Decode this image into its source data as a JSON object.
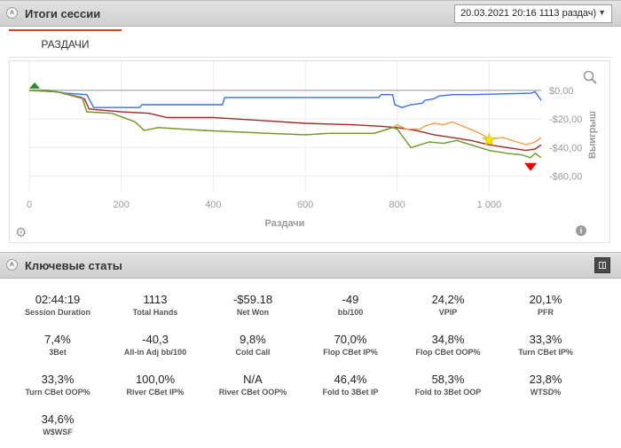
{
  "session_summary": {
    "title": "Итоги сессии",
    "session_selector": "20.03.2021 20:16 1113 раздач)",
    "tab_label": "РАЗДАЧИ"
  },
  "chart_data": {
    "type": "line",
    "xlabel": "Раздачи",
    "ylabel": "Выигрыш",
    "x_ticks": [
      "0",
      "200",
      "400",
      "600",
      "800",
      "1 000"
    ],
    "y_ticks": [
      "$0,00",
      "-$20,00",
      "-$40,00",
      "-$60,00"
    ],
    "xlim": [
      0,
      1113
    ],
    "ylim": [
      -67,
      3
    ],
    "series": [
      {
        "color": "#3b6fe0",
        "points": [
          [
            0,
            0
          ],
          [
            40,
            0
          ],
          [
            80,
            -2
          ],
          [
            125,
            -3
          ],
          [
            140,
            -12
          ],
          [
            240,
            -12
          ],
          [
            245,
            -10
          ],
          [
            420,
            -10
          ],
          [
            425,
            -5
          ],
          [
            760,
            -5
          ],
          [
            765,
            -3
          ],
          [
            790,
            -3
          ],
          [
            795,
            -10
          ],
          [
            810,
            -12
          ],
          [
            830,
            -10
          ],
          [
            855,
            -9
          ],
          [
            860,
            -7
          ],
          [
            880,
            -6
          ],
          [
            890,
            -4
          ],
          [
            920,
            -3
          ],
          [
            960,
            -3
          ],
          [
            1090,
            -2
          ],
          [
            1100,
            -1
          ],
          [
            1113,
            -7
          ]
        ]
      },
      {
        "color": "#9e2a2a",
        "points": [
          [
            0,
            0
          ],
          [
            60,
            -1
          ],
          [
            120,
            -6
          ],
          [
            130,
            -13
          ],
          [
            200,
            -15
          ],
          [
            260,
            -16
          ],
          [
            300,
            -19
          ],
          [
            400,
            -19
          ],
          [
            500,
            -21
          ],
          [
            600,
            -23
          ],
          [
            700,
            -24
          ],
          [
            760,
            -25
          ],
          [
            800,
            -26
          ],
          [
            840,
            -28
          ],
          [
            880,
            -31
          ],
          [
            920,
            -33
          ],
          [
            960,
            -35
          ],
          [
            1000,
            -38
          ],
          [
            1040,
            -40
          ],
          [
            1080,
            -42
          ],
          [
            1100,
            -41
          ],
          [
            1113,
            -38
          ]
        ]
      },
      {
        "color": "#f0a050",
        "points": [
          [
            0,
            0
          ],
          [
            60,
            -1
          ],
          [
            115,
            -5
          ],
          [
            125,
            -15
          ],
          [
            180,
            -16
          ],
          [
            230,
            -22
          ],
          [
            250,
            -28
          ],
          [
            280,
            -26
          ],
          [
            330,
            -27
          ],
          [
            380,
            -28
          ],
          [
            450,
            -29
          ],
          [
            520,
            -30
          ],
          [
            600,
            -31
          ],
          [
            650,
            -30
          ],
          [
            700,
            -30
          ],
          [
            750,
            -30
          ],
          [
            780,
            -27
          ],
          [
            790,
            -26
          ],
          [
            800,
            -24
          ],
          [
            820,
            -27
          ],
          [
            850,
            -27
          ],
          [
            860,
            -25
          ],
          [
            880,
            -23
          ],
          [
            900,
            -24
          ],
          [
            920,
            -22
          ],
          [
            950,
            -26
          ],
          [
            980,
            -30
          ],
          [
            1000,
            -34
          ],
          [
            1030,
            -33
          ],
          [
            1060,
            -36
          ],
          [
            1080,
            -38
          ],
          [
            1100,
            -36
          ],
          [
            1113,
            -33
          ]
        ]
      },
      {
        "color": "#6e9a30",
        "points": [
          [
            0,
            0
          ],
          [
            60,
            -1
          ],
          [
            115,
            -5
          ],
          [
            125,
            -15
          ],
          [
            180,
            -16
          ],
          [
            230,
            -22
          ],
          [
            250,
            -28
          ],
          [
            280,
            -26
          ],
          [
            330,
            -27
          ],
          [
            380,
            -28
          ],
          [
            450,
            -29
          ],
          [
            520,
            -30
          ],
          [
            600,
            -31
          ],
          [
            650,
            -30
          ],
          [
            700,
            -30
          ],
          [
            750,
            -30
          ],
          [
            780,
            -27
          ],
          [
            790,
            -26
          ],
          [
            800,
            -27
          ],
          [
            830,
            -40
          ],
          [
            850,
            -38
          ],
          [
            870,
            -36
          ],
          [
            900,
            -37
          ],
          [
            930,
            -35
          ],
          [
            960,
            -38
          ],
          [
            1000,
            -42
          ],
          [
            1040,
            -44
          ],
          [
            1070,
            -45
          ],
          [
            1090,
            -47
          ],
          [
            1100,
            -44
          ],
          [
            1113,
            -47
          ]
        ]
      }
    ],
    "reference_line": {
      "y": 0,
      "color": "#999999"
    },
    "markers": {
      "start_marker_color": "#2e8b2e",
      "max_marker_color": "#ffe600",
      "min_marker_color": "#e00000"
    }
  },
  "key_stats": {
    "title": "Ключевые статы",
    "items": [
      {
        "value": "02:44:19",
        "label": "Session Duration"
      },
      {
        "value": "1113",
        "label": "Total Hands"
      },
      {
        "value": "-$59.18",
        "label": "Net Won"
      },
      {
        "value": "-49",
        "label": "bb/100"
      },
      {
        "value": "24,2%",
        "label": "VPIP"
      },
      {
        "value": "20,1%",
        "label": "PFR"
      },
      {
        "value": "7,4%",
        "label": "3Bet"
      },
      {
        "value": "-40,3",
        "label": "All-in Adj bb/100"
      },
      {
        "value": "9,8%",
        "label": "Cold Call"
      },
      {
        "value": "70,0%",
        "label": "Flop CBet IP%"
      },
      {
        "value": "34,8%",
        "label": "Flop CBet OOP%"
      },
      {
        "value": "33,3%",
        "label": "Turn CBet IP%"
      },
      {
        "value": "33,3%",
        "label": "Turn CBet OOP%"
      },
      {
        "value": "100,0%",
        "label": "River CBet IP%"
      },
      {
        "value": "N/A",
        "label": "River CBet OOP%"
      },
      {
        "value": "46,4%",
        "label": "Fold to 3Bet IP"
      },
      {
        "value": "58,3%",
        "label": "Fold to 3Bet OOP"
      },
      {
        "value": "23,8%",
        "label": "WTSD%"
      },
      {
        "value": "34,6%",
        "label": "W$WSF"
      }
    ]
  }
}
